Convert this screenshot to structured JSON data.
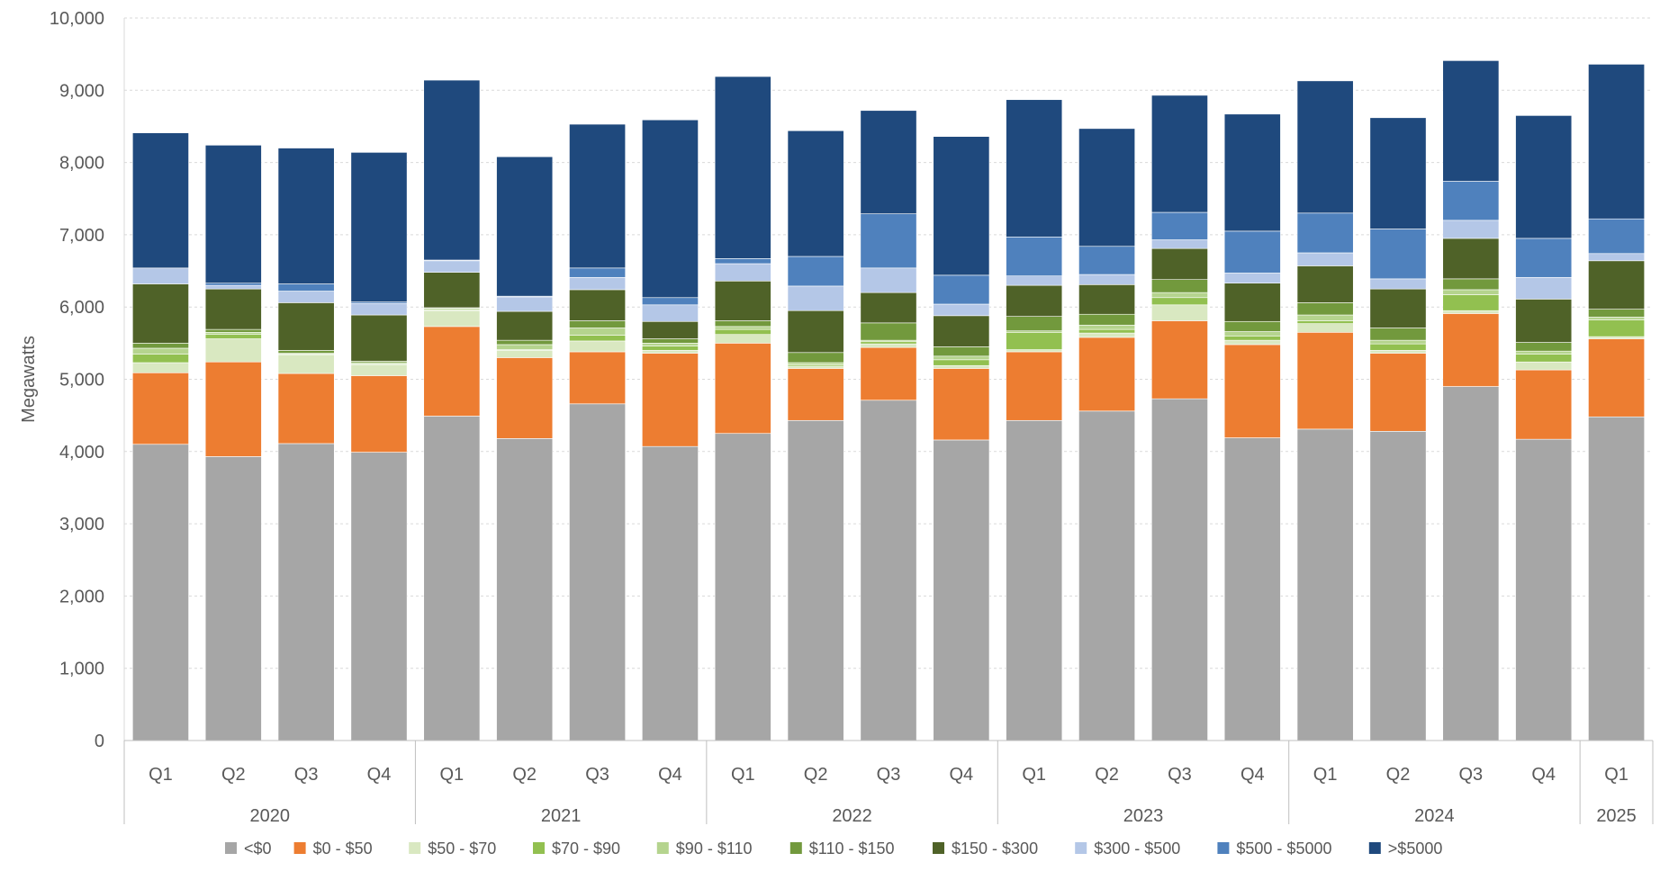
{
  "chart_data": {
    "type": "bar",
    "stacked": true,
    "ylabel": "Megawatts",
    "xlabel": "",
    "ylim": [
      0,
      10000
    ],
    "yticks": [
      0,
      1000,
      2000,
      3000,
      4000,
      5000,
      6000,
      7000,
      8000,
      9000,
      10000
    ],
    "ytick_labels": [
      "0",
      "1,000",
      "2,000",
      "3,000",
      "4,000",
      "5,000",
      "6,000",
      "7,000",
      "8,000",
      "9,000",
      "10,000"
    ],
    "grid": true,
    "legend_position": "bottom",
    "categories": [
      "Q1",
      "Q2",
      "Q3",
      "Q4",
      "Q1",
      "Q2",
      "Q3",
      "Q4",
      "Q1",
      "Q2",
      "Q3",
      "Q4",
      "Q1",
      "Q2",
      "Q3",
      "Q4",
      "Q1",
      "Q2",
      "Q3",
      "Q4",
      "Q1"
    ],
    "groups": [
      {
        "label": "2020",
        "count": 4
      },
      {
        "label": "2021",
        "count": 4
      },
      {
        "label": "2022",
        "count": 4
      },
      {
        "label": "2023",
        "count": 4
      },
      {
        "label": "2024",
        "count": 4
      },
      {
        "label": "2025",
        "count": 1
      }
    ],
    "series": [
      {
        "name": "<$0",
        "color": "#a6a6a6",
        "values": [
          4100,
          3930,
          4110,
          3990,
          4490,
          4180,
          4660,
          4070,
          4250,
          4430,
          4710,
          4160,
          4430,
          4560,
          4730,
          4190,
          4310,
          4280,
          4900,
          4170,
          4480
        ]
      },
      {
        "name": "$0 - $50",
        "color": "#ed7d31",
        "values": [
          990,
          1310,
          970,
          1060,
          1240,
          1120,
          720,
          1290,
          1250,
          720,
          730,
          990,
          950,
          1020,
          1080,
          1290,
          1340,
          1080,
          1010,
          960,
          1080
        ]
      },
      {
        "name": "$50 - $70",
        "color": "#d9e8c1",
        "values": [
          140,
          320,
          260,
          150,
          220,
          100,
          150,
          40,
          120,
          30,
          50,
          40,
          30,
          60,
          220,
          60,
          120,
          40,
          40,
          110,
          30
        ]
      },
      {
        "name": "$70 - $90",
        "color": "#92c050",
        "values": [
          120,
          60,
          10,
          10,
          10,
          10,
          80,
          60,
          70,
          20,
          30,
          80,
          240,
          50,
          100,
          60,
          40,
          90,
          220,
          110,
          230
        ]
      },
      {
        "name": "$90 - $110",
        "color": "#b5d48e",
        "values": [
          80,
          30,
          10,
          20,
          20,
          70,
          100,
          40,
          40,
          30,
          20,
          50,
          20,
          60,
          70,
          60,
          80,
          50,
          70,
          40,
          40
        ]
      },
      {
        "name": "$110 - $150",
        "color": "#72993d",
        "values": [
          70,
          40,
          40,
          20,
          10,
          60,
          100,
          60,
          80,
          140,
          240,
          130,
          200,
          150,
          180,
          140,
          170,
          170,
          150,
          120,
          110
        ]
      },
      {
        "name": "$150 - $300",
        "color": "#4f6228",
        "values": [
          820,
          560,
          660,
          640,
          490,
          400,
          430,
          240,
          550,
          580,
          420,
          430,
          430,
          410,
          430,
          530,
          510,
          540,
          560,
          600,
          670
        ]
      },
      {
        "name": "$300 - $500",
        "color": "#b4c7e7",
        "values": [
          220,
          50,
          160,
          160,
          160,
          200,
          170,
          230,
          240,
          340,
          340,
          160,
          130,
          140,
          120,
          140,
          180,
          140,
          250,
          300,
          100
        ]
      },
      {
        "name": "$500 - $5000",
        "color": "#4f81bd",
        "values": [
          0,
          30,
          100,
          20,
          10,
          10,
          130,
          100,
          70,
          410,
          750,
          400,
          540,
          390,
          380,
          580,
          550,
          690,
          540,
          540,
          480
        ]
      },
      {
        "name": ">$5000",
        "color": "#1f497d",
        "values": [
          1870,
          1910,
          1880,
          2070,
          2490,
          1930,
          1990,
          2460,
          2520,
          1740,
          1430,
          1920,
          1900,
          1630,
          1620,
          1620,
          1830,
          1540,
          1670,
          1700,
          2140
        ]
      }
    ]
  }
}
